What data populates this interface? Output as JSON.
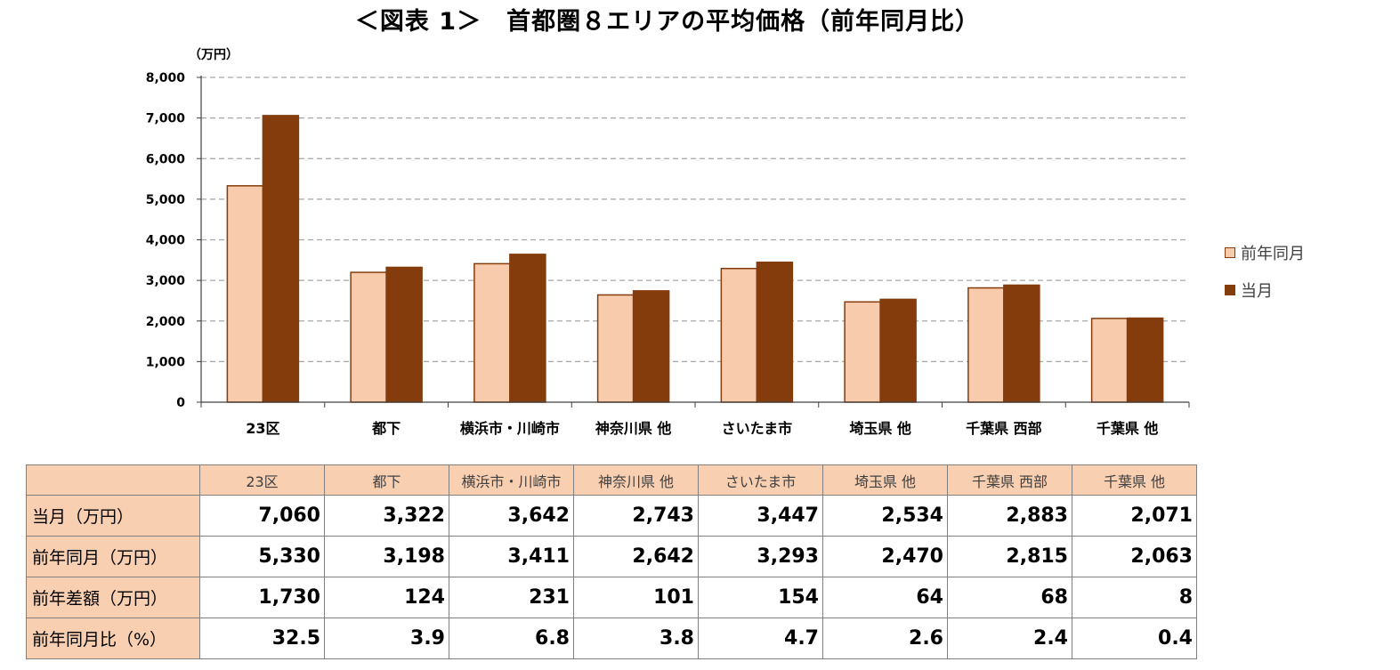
{
  "title": "＜図表 1＞　首都圏８エリアの平均価格（前年同月比）",
  "colors": {
    "prev": "#f8cbad",
    "curr": "#843c0c",
    "bar_outline": "#843c0c",
    "grid": "#a6a6a6",
    "header_fill": "#f9cfb2"
  },
  "chart_data": {
    "type": "bar",
    "unit_label": "（万円）",
    "categories": [
      "23区",
      "都下",
      "横浜市・川崎市",
      "神奈川県 他",
      "さいたま市",
      "埼玉県 他",
      "千葉県 西部",
      "千葉県 他"
    ],
    "series": [
      {
        "name": "前年同月",
        "values": [
          5330,
          3198,
          3411,
          2642,
          3293,
          2470,
          2815,
          2063
        ]
      },
      {
        "name": "当月",
        "values": [
          7060,
          3322,
          3642,
          2743,
          3447,
          2534,
          2883,
          2071
        ]
      }
    ],
    "ylim": [
      0,
      8000
    ],
    "yticks": [
      "0",
      "1,000",
      "2,000",
      "3,000",
      "4,000",
      "5,000",
      "6,000",
      "7,000",
      "8,000"
    ],
    "grid": "dashed horizontal",
    "legend_position": "right"
  },
  "legend": {
    "items": [
      {
        "label": "前年同月"
      },
      {
        "label": "当月"
      }
    ]
  },
  "table": {
    "columns": [
      "23区",
      "都下",
      "横浜市・川崎市",
      "神奈川県 他",
      "さいたま市",
      "埼玉県 他",
      "千葉県 西部",
      "千葉県 他"
    ],
    "rows": [
      {
        "label": "当月（万円）",
        "values": [
          "7,060",
          "3,322",
          "3,642",
          "2,743",
          "3,447",
          "2,534",
          "2,883",
          "2,071"
        ]
      },
      {
        "label": "前年同月（万円）",
        "values": [
          "5,330",
          "3,198",
          "3,411",
          "2,642",
          "3,293",
          "2,470",
          "2,815",
          "2,063"
        ]
      },
      {
        "label": "前年差額（万円）",
        "values": [
          "1,730",
          "124",
          "231",
          "101",
          "154",
          "64",
          "68",
          "8"
        ]
      },
      {
        "label": "前年同月比（%）",
        "values": [
          "32.5",
          "3.9",
          "6.8",
          "3.8",
          "4.7",
          "2.6",
          "2.4",
          "0.4"
        ]
      }
    ]
  }
}
